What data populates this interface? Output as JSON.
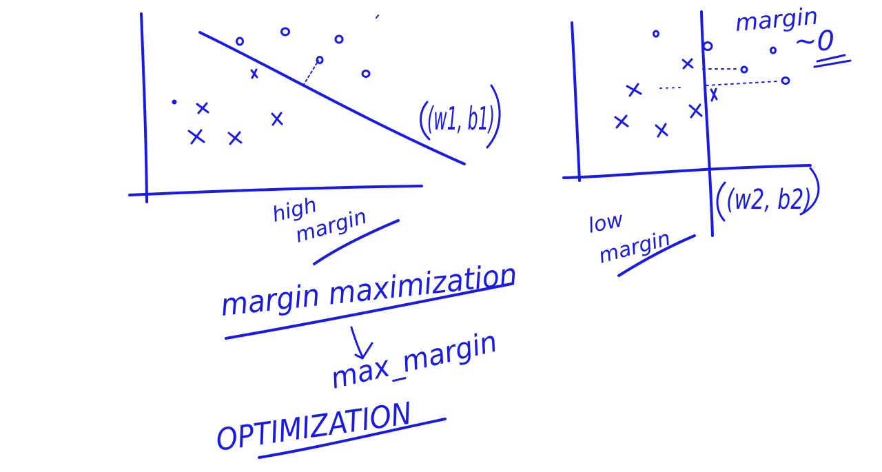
{
  "colors": {
    "ink": "#1a1ae6",
    "background": "#ffffff"
  },
  "left_figure": {
    "params_label": "(w1, b1)",
    "caption_line1": "high",
    "caption_line2": "margin"
  },
  "right_figure": {
    "annotation_line1": "margin",
    "annotation_line2": "~0",
    "params_label": "(w2, b2)",
    "caption_line1": "low",
    "caption_line2": "margin"
  },
  "notes": {
    "heading": "margin maximization",
    "line2": "max_margin",
    "line3": "OPTIMIZATION"
  }
}
